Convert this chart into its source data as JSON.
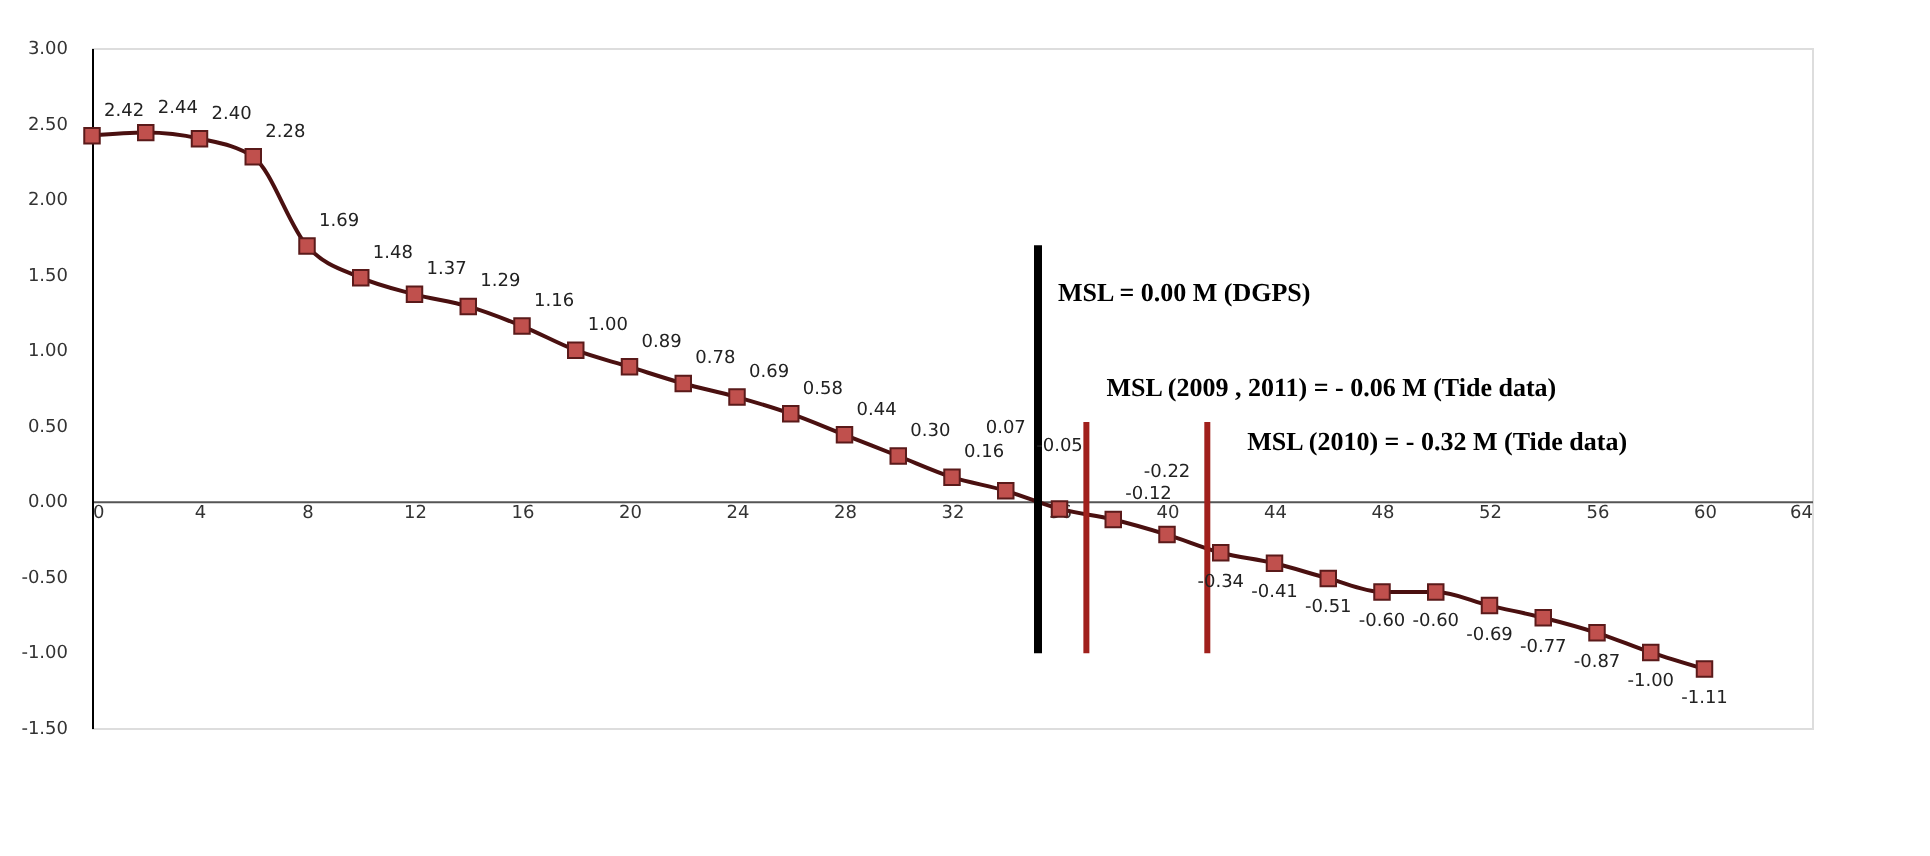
{
  "chart_data": {
    "type": "line",
    "x": [
      0,
      2,
      4,
      6,
      8,
      10,
      12,
      14,
      16,
      18,
      20,
      22,
      24,
      26,
      28,
      30,
      32,
      34,
      36,
      38,
      40,
      42,
      44,
      46,
      48,
      50,
      52,
      54,
      56,
      58,
      60
    ],
    "series": [
      {
        "color": "#c0504d",
        "values": [
          2.42,
          2.44,
          2.4,
          2.28,
          1.69,
          1.48,
          1.37,
          1.29,
          1.16,
          1.0,
          0.89,
          0.78,
          0.69,
          0.58,
          0.44,
          0.3,
          0.16,
          0.07,
          -0.05,
          -0.12,
          -0.22,
          -0.34,
          -0.41,
          -0.51,
          -0.6,
          -0.6,
          -0.69,
          -0.77,
          -0.87,
          -1.0,
          -1.11
        ],
        "value_labels": [
          "2.42",
          "2.44",
          "2.40",
          "2.28",
          "1.69",
          "1.48",
          "1.37",
          "1.29",
          "1.16",
          "1.00",
          "0.89",
          "0.78",
          "0.69",
          "0.58",
          "0.44",
          "0.30",
          "0.16",
          "0.07",
          "-0.05",
          "-0.12",
          "-0.22",
          "-0.34",
          "-0.41",
          "-0.51",
          "-0.60",
          "-0.60",
          "-0.69",
          "-0.77",
          "-0.87",
          "-1.00",
          "-1.11"
        ]
      }
    ],
    "xlim": [
      0,
      64
    ],
    "xticks": [
      0,
      4,
      8,
      12,
      16,
      20,
      24,
      28,
      32,
      36,
      40,
      44,
      48,
      52,
      56,
      60,
      64
    ],
    "ylim": [
      -1.5,
      3
    ],
    "yticks": [
      {
        "value": -1.5,
        "label": "-1.50"
      },
      {
        "value": -1,
        "label": "-1.00"
      },
      {
        "value": -0.5,
        "label": "-0.50"
      },
      {
        "value": 0,
        "label": "0.00"
      },
      {
        "value": 0.5,
        "label": "0.50"
      },
      {
        "value": 1,
        "label": "1.00"
      },
      {
        "value": 1.5,
        "label": "1.50"
      },
      {
        "value": 2,
        "label": "2.00"
      },
      {
        "value": 2.5,
        "label": "2.50"
      },
      {
        "value": 3,
        "label": "3.00"
      }
    ],
    "ref_lines": [
      {
        "axis": "x",
        "value": 35.2,
        "label": "MSL = 0.00 M   (DGPS)",
        "color": "#000000"
      },
      {
        "axis": "x",
        "value": 37,
        "label": "MSL (2009 , 2011) = - 0.06 M (Tide data)",
        "color": "#a0201c"
      },
      {
        "axis": "x",
        "value": 41.5,
        "label": "MSL (2010) = - 0.32 M (Tide data)",
        "color": "#a0201c"
      }
    ],
    "marker": "square",
    "line_style": "solid",
    "grid": false
  }
}
